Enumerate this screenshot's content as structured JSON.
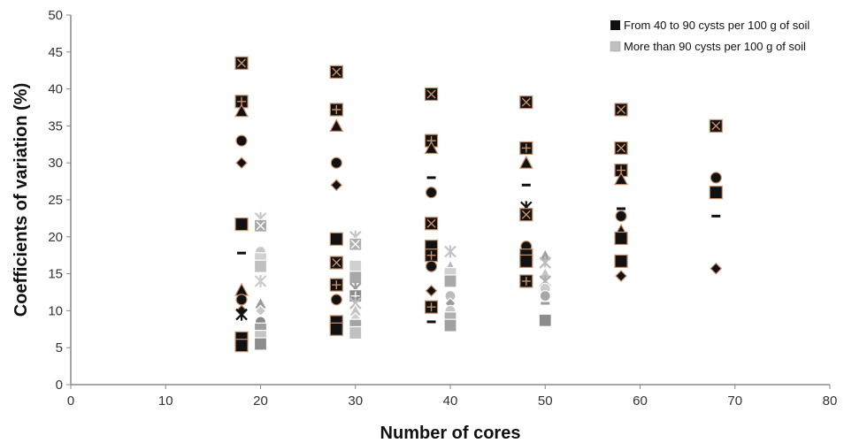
{
  "chart_data": {
    "type": "scatter",
    "title": "",
    "xlabel": "Number of cores",
    "ylabel": "Coefficients of variation (%)",
    "xlim": [
      0,
      80
    ],
    "ylim": [
      0,
      50
    ],
    "xticks": [
      0,
      10,
      20,
      30,
      40,
      50,
      60,
      70,
      80
    ],
    "yticks": [
      0,
      5,
      10,
      15,
      20,
      25,
      30,
      35,
      40,
      45,
      50
    ],
    "grid": false,
    "legend_position": "top-right",
    "series": [
      {
        "name": "From 40 to 90 cysts per 100 g of soil",
        "color": "#111111",
        "edge_color": "#c8906a",
        "points": [
          {
            "x": 18,
            "y": 43.5,
            "marker": "boxx"
          },
          {
            "x": 18,
            "y": 38.3,
            "marker": "boxplus"
          },
          {
            "x": 18,
            "y": 37.0,
            "marker": "triangle"
          },
          {
            "x": 18,
            "y": 33.0,
            "marker": "circle"
          },
          {
            "x": 18,
            "y": 30.0,
            "marker": "diamond"
          },
          {
            "x": 18,
            "y": 21.7,
            "marker": "square"
          },
          {
            "x": 18,
            "y": 17.8,
            "marker": "dash"
          },
          {
            "x": 18,
            "y": 12.8,
            "marker": "triangle"
          },
          {
            "x": 18,
            "y": 11.5,
            "marker": "circle"
          },
          {
            "x": 18,
            "y": 10.0,
            "marker": "diamond"
          },
          {
            "x": 18,
            "y": 9.5,
            "marker": "star"
          },
          {
            "x": 18,
            "y": 6.3,
            "marker": "square"
          },
          {
            "x": 18,
            "y": 5.3,
            "marker": "square"
          },
          {
            "x": 28,
            "y": 42.3,
            "marker": "boxx"
          },
          {
            "x": 28,
            "y": 37.2,
            "marker": "boxplus"
          },
          {
            "x": 28,
            "y": 35.0,
            "marker": "triangle"
          },
          {
            "x": 28,
            "y": 30.0,
            "marker": "circle"
          },
          {
            "x": 28,
            "y": 27.0,
            "marker": "diamond"
          },
          {
            "x": 28,
            "y": 19.7,
            "marker": "square"
          },
          {
            "x": 28,
            "y": 16.5,
            "marker": "boxx"
          },
          {
            "x": 28,
            "y": 13.5,
            "marker": "boxplus"
          },
          {
            "x": 28,
            "y": 11.5,
            "marker": "circle"
          },
          {
            "x": 28,
            "y": 8.5,
            "marker": "square"
          },
          {
            "x": 28,
            "y": 7.5,
            "marker": "square"
          },
          {
            "x": 38,
            "y": 39.3,
            "marker": "boxx"
          },
          {
            "x": 38,
            "y": 33.0,
            "marker": "boxplus"
          },
          {
            "x": 38,
            "y": 32.0,
            "marker": "triangle"
          },
          {
            "x": 38,
            "y": 28.0,
            "marker": "dash"
          },
          {
            "x": 38,
            "y": 26.0,
            "marker": "circle"
          },
          {
            "x": 38,
            "y": 21.8,
            "marker": "boxx"
          },
          {
            "x": 38,
            "y": 18.7,
            "marker": "square"
          },
          {
            "x": 38,
            "y": 17.5,
            "marker": "boxplus"
          },
          {
            "x": 38,
            "y": 16.0,
            "marker": "circle"
          },
          {
            "x": 38,
            "y": 12.7,
            "marker": "diamond"
          },
          {
            "x": 38,
            "y": 10.5,
            "marker": "boxplus"
          },
          {
            "x": 38,
            "y": 8.5,
            "marker": "dash"
          },
          {
            "x": 48,
            "y": 38.2,
            "marker": "boxx"
          },
          {
            "x": 48,
            "y": 32.0,
            "marker": "boxplus"
          },
          {
            "x": 48,
            "y": 30.0,
            "marker": "triangle"
          },
          {
            "x": 48,
            "y": 27.0,
            "marker": "dash"
          },
          {
            "x": 48,
            "y": 24.0,
            "marker": "star"
          },
          {
            "x": 48,
            "y": 23.0,
            "marker": "boxx"
          },
          {
            "x": 48,
            "y": 18.7,
            "marker": "circle"
          },
          {
            "x": 48,
            "y": 17.5,
            "marker": "square"
          },
          {
            "x": 48,
            "y": 16.7,
            "marker": "square"
          },
          {
            "x": 48,
            "y": 14.0,
            "marker": "boxplus"
          },
          {
            "x": 58,
            "y": 37.2,
            "marker": "boxx"
          },
          {
            "x": 58,
            "y": 32.0,
            "marker": "boxx"
          },
          {
            "x": 58,
            "y": 29.0,
            "marker": "boxplus"
          },
          {
            "x": 58,
            "y": 27.8,
            "marker": "triangle"
          },
          {
            "x": 58,
            "y": 23.8,
            "marker": "dash"
          },
          {
            "x": 58,
            "y": 22.8,
            "marker": "circle"
          },
          {
            "x": 58,
            "y": 20.8,
            "marker": "triangle"
          },
          {
            "x": 58,
            "y": 19.8,
            "marker": "square"
          },
          {
            "x": 58,
            "y": 16.7,
            "marker": "square"
          },
          {
            "x": 58,
            "y": 14.7,
            "marker": "diamond"
          },
          {
            "x": 68,
            "y": 35.0,
            "marker": "boxx"
          },
          {
            "x": 68,
            "y": 28.0,
            "marker": "circle"
          },
          {
            "x": 68,
            "y": 26.0,
            "marker": "square"
          },
          {
            "x": 68,
            "y": 22.8,
            "marker": "dash"
          },
          {
            "x": 68,
            "y": 15.7,
            "marker": "diamond"
          }
        ]
      },
      {
        "name": "More than 90 cysts per 100 g of soil",
        "color": "#bdbdbd",
        "edge_color": "#ffffff",
        "points": [
          {
            "x": 20,
            "y": 22.5,
            "marker": "star",
            "color": "#c8c8c8"
          },
          {
            "x": 20,
            "y": 21.5,
            "marker": "boxx",
            "color": "#a8a8a8"
          },
          {
            "x": 20,
            "y": 18.0,
            "marker": "circle",
            "color": "#c8c8c8"
          },
          {
            "x": 20,
            "y": 17.0,
            "marker": "square",
            "color": "#d2d2d2"
          },
          {
            "x": 20,
            "y": 16.0,
            "marker": "square",
            "color": "#c0c0c0"
          },
          {
            "x": 20,
            "y": 14.0,
            "marker": "star",
            "color": "#cccccc"
          },
          {
            "x": 20,
            "y": 11.0,
            "marker": "triangle",
            "color": "#9a9a9a"
          },
          {
            "x": 20,
            "y": 10.0,
            "marker": "diamond",
            "color": "#c8c8c8"
          },
          {
            "x": 20,
            "y": 8.5,
            "marker": "circle",
            "color": "#888888"
          },
          {
            "x": 20,
            "y": 7.5,
            "marker": "square",
            "color": "#a0a0a0"
          },
          {
            "x": 20,
            "y": 6.5,
            "marker": "square",
            "color": "#c4c4c4"
          },
          {
            "x": 20,
            "y": 5.5,
            "marker": "square",
            "color": "#8c8c8c"
          },
          {
            "x": 30,
            "y": 20.0,
            "marker": "star",
            "color": "#c4c4c4"
          },
          {
            "x": 30,
            "y": 19.0,
            "marker": "boxx",
            "color": "#b0b0b0"
          },
          {
            "x": 30,
            "y": 16.0,
            "marker": "square",
            "color": "#d0d0d0"
          },
          {
            "x": 30,
            "y": 14.5,
            "marker": "square",
            "color": "#a8a8a8"
          },
          {
            "x": 30,
            "y": 13.0,
            "marker": "star",
            "color": "#9c9c9c"
          },
          {
            "x": 30,
            "y": 12.0,
            "marker": "boxplus",
            "color": "#8c8c8c"
          },
          {
            "x": 30,
            "y": 11.0,
            "marker": "star",
            "color": "#bcbcbc"
          },
          {
            "x": 30,
            "y": 10.0,
            "marker": "triangle",
            "color": "#c4c4c4"
          },
          {
            "x": 30,
            "y": 9.0,
            "marker": "diamond",
            "color": "#d0d0d0"
          },
          {
            "x": 30,
            "y": 8.0,
            "marker": "square",
            "color": "#a4a4a4"
          },
          {
            "x": 30,
            "y": 7.0,
            "marker": "square",
            "color": "#c0c0c0"
          },
          {
            "x": 40,
            "y": 18.0,
            "marker": "star",
            "color": "#c4c4c4"
          },
          {
            "x": 40,
            "y": 16.0,
            "marker": "triangle",
            "color": "#b8b8b8"
          },
          {
            "x": 40,
            "y": 15.0,
            "marker": "square",
            "color": "#d0d0d0"
          },
          {
            "x": 40,
            "y": 14.0,
            "marker": "square",
            "color": "#a8a8a8"
          },
          {
            "x": 40,
            "y": 12.0,
            "marker": "circle",
            "color": "#bcbcbc"
          },
          {
            "x": 40,
            "y": 11.0,
            "marker": "diamond",
            "color": "#9c9c9c"
          },
          {
            "x": 40,
            "y": 10.0,
            "marker": "circle",
            "color": "#c8c8c8"
          },
          {
            "x": 40,
            "y": 9.0,
            "marker": "square",
            "color": "#b0b0b0"
          },
          {
            "x": 40,
            "y": 8.0,
            "marker": "square",
            "color": "#a0a0a0"
          },
          {
            "x": 50,
            "y": 17.5,
            "marker": "triangle",
            "color": "#a0a0a0"
          },
          {
            "x": 50,
            "y": 16.5,
            "marker": "star",
            "color": "#bcbcbc"
          },
          {
            "x": 50,
            "y": 15.0,
            "marker": "triangle",
            "color": "#c4c4c4"
          },
          {
            "x": 50,
            "y": 14.0,
            "marker": "star",
            "color": "#b0b0b0"
          },
          {
            "x": 50,
            "y": 13.0,
            "marker": "circle",
            "color": "#cccccc"
          },
          {
            "x": 50,
            "y": 12.0,
            "marker": "circle",
            "color": "#a8a8a8"
          },
          {
            "x": 50,
            "y": 11.0,
            "marker": "dash",
            "color": "#9c9c9c"
          },
          {
            "x": 50,
            "y": 8.7,
            "marker": "square",
            "color": "#8c8c8c"
          }
        ]
      }
    ]
  }
}
